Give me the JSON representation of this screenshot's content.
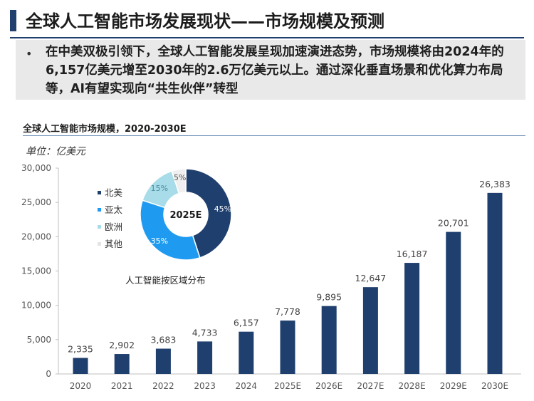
{
  "header": {
    "title": "全球人工智能市场发展现状——市场规模及预测"
  },
  "summary": {
    "bullet": "•",
    "text": "在中美双极引领下，全球人工智能发展呈现加速演进态势，市场规模将由2024年的6,157亿美元增至2030年的2.6万亿美元以上。通过深化垂直场景和优化算力布局等，AI有望实现向“共生伙伴”转型"
  },
  "chart_data": [
    {
      "type": "bar",
      "title": "全球人工智能市场规模，2020-2030E",
      "unit": "单位：亿美元",
      "categories": [
        "2020",
        "2021",
        "2022",
        "2023",
        "2024",
        "2025E",
        "2026E",
        "2027E",
        "2028E",
        "2029E",
        "2030E"
      ],
      "values": [
        2335,
        2902,
        3683,
        4733,
        6157,
        7778,
        9895,
        12647,
        16187,
        20701,
        26383
      ],
      "value_labels": [
        "2,335",
        "2,902",
        "3,683",
        "4,733",
        "6,157",
        "7,778",
        "9,895",
        "12,647",
        "16,187",
        "20,701",
        "26,383"
      ],
      "y_ticks": [
        0,
        5000,
        10000,
        15000,
        20000,
        25000,
        30000
      ],
      "y_tick_labels": [
        "0",
        "5,000",
        "10,000",
        "15,000",
        "20,000",
        "25,000",
        "30,000"
      ],
      "ylim": [
        0,
        30000
      ],
      "grid": false,
      "bar_color": "#1f3f6e"
    },
    {
      "type": "pie",
      "title": "人工智能按区域分布",
      "center_label": "2025E",
      "legend_position": "left",
      "slices": [
        {
          "name": "北美",
          "value": 45,
          "label": "45%",
          "color": "#1f3f6e"
        },
        {
          "name": "亚太",
          "value": 35,
          "label": "35%",
          "color": "#1e9bf0"
        },
        {
          "name": "欧洲",
          "value": 15,
          "label": "15%",
          "color": "#a8dce8"
        },
        {
          "name": "其他",
          "value": 5,
          "label": "5%",
          "color": "#efefef"
        }
      ]
    }
  ]
}
